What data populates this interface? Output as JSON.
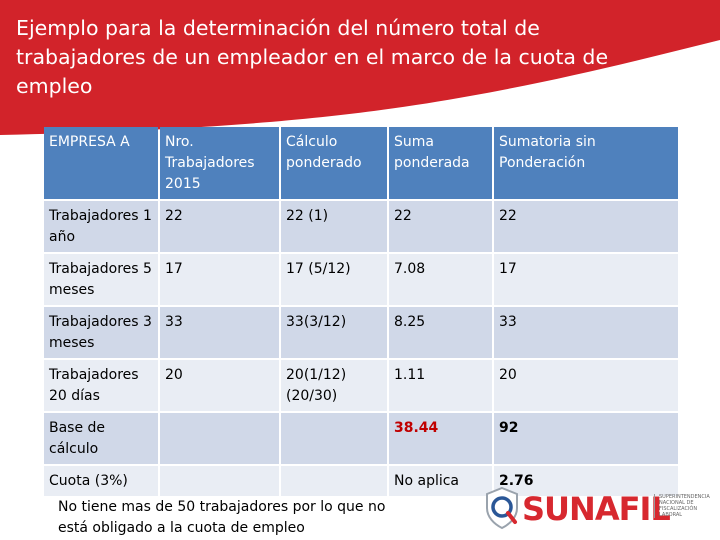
{
  "header": {
    "title": "Ejemplo para la determinación del número total de trabajadores de un empleador en el marco de la cuota de empleo",
    "banner_color": "#d2232a"
  },
  "table": {
    "header_color": "#4f81bd",
    "odd_row_color": "#d0d8e8",
    "even_row_color": "#e9edf4",
    "columns": [
      "EMPRESA A",
      "Nro. Trabajadores 2015",
      "Cálculo ponderado",
      "Suma ponderada",
      "Sumatoria sin Ponderación"
    ],
    "rows": [
      {
        "label": "Trabajadores 1 año",
        "nro": "22",
        "calculo": "22 (1)",
        "suma": "22",
        "sin": "22"
      },
      {
        "label": "Trabajadores 5 meses",
        "nro": "17",
        "calculo": "17 (5/12)",
        "suma": "7.08",
        "sin": "17"
      },
      {
        "label": "Trabajadores 3 meses",
        "nro": "33",
        "calculo": "33(3/12)",
        "suma": "8.25",
        "sin": "33"
      },
      {
        "label": "Trabajadores 20 días",
        "nro": "20",
        "calculo": "20(1/12) (20/30)",
        "suma": "1.11",
        "sin": "20"
      },
      {
        "label": "Base de cálculo",
        "nro": "",
        "calculo": "",
        "suma": "38.44",
        "sin": "92"
      },
      {
        "label": "Cuota (3%)",
        "nro": "",
        "calculo": "",
        "suma": "No aplica",
        "sin": "2.76"
      }
    ]
  },
  "note": "No tiene mas de 50 trabajadores por lo que no está obligado a la cuota de empleo",
  "logo": {
    "word": "SUNAFIL",
    "tagline": "SUPERINTENDENCIA NACIONAL DE FISCALIZACIÓN LABORAL",
    "color": "#d7282f",
    "icon": "magnifier-shield-icon"
  }
}
